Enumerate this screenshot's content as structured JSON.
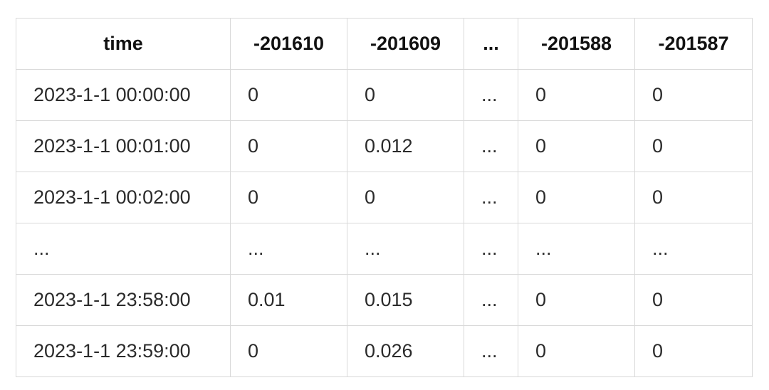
{
  "table": {
    "header": [
      "time",
      "-201610",
      "-201609",
      "...",
      "-201588",
      "-201587"
    ],
    "rows": [
      [
        "2023-1-1 00:00:00",
        "0",
        "0",
        "...",
        "0",
        "0"
      ],
      [
        "2023-1-1 00:01:00",
        "0",
        "0.012",
        "...",
        "0",
        "0"
      ],
      [
        "2023-1-1 00:02:00",
        "0",
        "0",
        "...",
        "0",
        "0"
      ],
      [
        "...",
        "...",
        "...",
        "...",
        "...",
        "..."
      ],
      [
        "2023-1-1 23:58:00",
        "0.01",
        "0.015",
        "...",
        "0",
        "0"
      ],
      [
        "2023-1-1 23:59:00",
        "0",
        "0.026",
        "...",
        "0",
        "0"
      ]
    ]
  }
}
